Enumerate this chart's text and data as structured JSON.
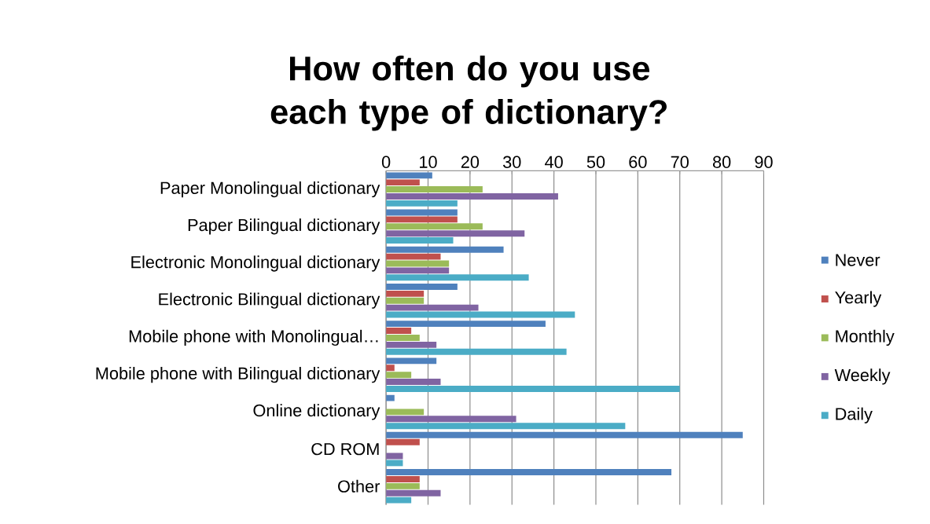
{
  "chart_data": {
    "type": "bar",
    "orientation": "horizontal",
    "title": "How often do you use each type of dictionary?",
    "categories": [
      "Paper Monolingual dictionary",
      "Paper Bilingual dictionary",
      "Electronic Monolingual dictionary",
      "Electronic Bilingual dictionary",
      "Mobile phone with Monolingual…",
      "Mobile phone with Bilingual dictionary",
      "Online dictionary",
      "CD ROM",
      "Other"
    ],
    "series": [
      {
        "name": "Never",
        "color": "#4f81bd",
        "values": [
          11,
          17,
          28,
          17,
          38,
          12,
          2,
          85,
          68
        ]
      },
      {
        "name": "Yearly",
        "color": "#c0504d",
        "values": [
          8,
          17,
          13,
          9,
          6,
          2,
          0,
          8,
          8
        ]
      },
      {
        "name": "Monthly",
        "color": "#9bbb59",
        "values": [
          23,
          23,
          15,
          9,
          8,
          6,
          9,
          0,
          8
        ]
      },
      {
        "name": "Weekly",
        "color": "#8064a2",
        "values": [
          41,
          33,
          15,
          22,
          12,
          13,
          31,
          4,
          13
        ]
      },
      {
        "name": "Daily",
        "color": "#4bacc6",
        "values": [
          17,
          16,
          34,
          45,
          43,
          70,
          57,
          4,
          6
        ]
      }
    ],
    "xlim": [
      0,
      90
    ],
    "xticks": [
      0,
      10,
      20,
      30,
      40,
      50,
      60,
      70,
      80,
      90
    ],
    "grid": "x",
    "legend": "right"
  }
}
